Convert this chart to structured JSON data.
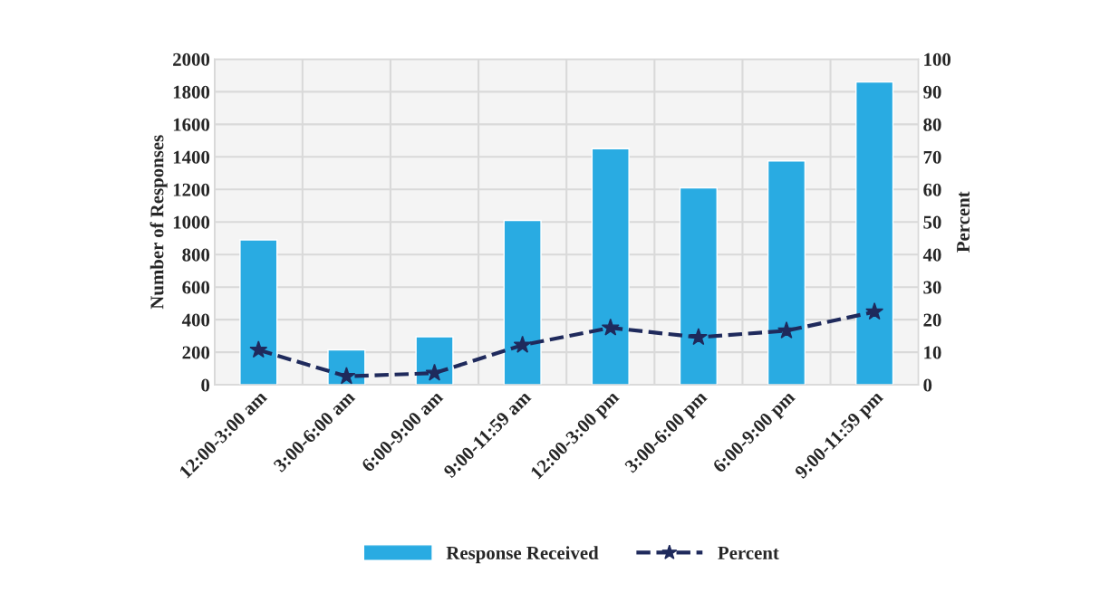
{
  "chart_data": {
    "type": "bar",
    "ylabel": "Number of Responses",
    "y2label": "Percent",
    "categories": [
      "12:00-3:00 am",
      "3:00-6:00 am",
      "6:00-9:00 am",
      "9:00-11:59 am",
      "12:00-3:00 pm",
      "3:00-6:00 pm",
      "6:00-9:00 pm",
      "9:00-11:59 pm"
    ],
    "series": [
      {
        "name": "Response Received",
        "color": "#29abe2",
        "values": [
          890,
          215,
          295,
          1010,
          1450,
          1210,
          1375,
          1860
        ]
      },
      {
        "name": "Percent",
        "type": "line",
        "axis": "y2",
        "color": "#1f2a5c",
        "marker": "star",
        "line_style": "dashed",
        "values": [
          10.7,
          2.6,
          3.6,
          12.2,
          17.5,
          14.6,
          16.6,
          22.4
        ]
      }
    ],
    "ylim": [
      0,
      2000
    ],
    "yticks": [
      0,
      200,
      400,
      600,
      800,
      1000,
      1200,
      1400,
      1600,
      1800,
      2000
    ],
    "y2lim": [
      0,
      100
    ],
    "y2ticks": [
      0,
      10,
      20,
      30,
      40,
      50,
      60,
      70,
      80,
      90,
      100
    ],
    "grid": true,
    "legend": "bottom"
  }
}
